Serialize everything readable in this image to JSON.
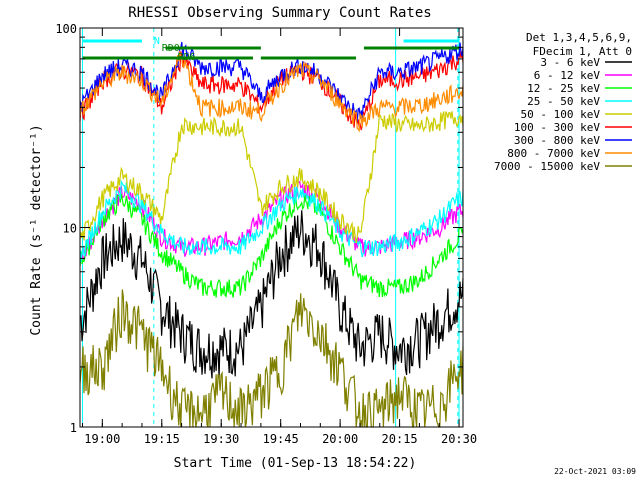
{
  "chart_data": {
    "type": "line",
    "title": "RHESSI Observing Summary Count Rates",
    "xlabel": "Start Time (01-Sep-13 18:54:22)",
    "ylabel": "Count Rate (s⁻¹ detector⁻¹)",
    "y_scale": "log",
    "ylim": [
      1,
      100
    ],
    "xlim": [
      "18:54:22",
      "20:31:00"
    ],
    "grid": false,
    "legend_placement": "right, outside plot",
    "x_ticks": [
      "19:00",
      "19:15",
      "19:30",
      "19:45",
      "20:00",
      "20:15",
      "20:30"
    ],
    "y_ticks": [
      "1",
      "10",
      "100"
    ],
    "legend_header": [
      "Det 1,3,4,5,6,9,",
      "FDecim 1, Att 0"
    ],
    "series": [
      {
        "name": "3 - 6 keV",
        "color": "#000000",
        "x": [
          "18:55",
          "19:00",
          "19:05",
          "19:10",
          "19:15",
          "19:20",
          "19:25",
          "19:30",
          "19:35",
          "19:40",
          "19:45",
          "19:50",
          "19:55",
          "20:00",
          "20:05",
          "20:10",
          "20:15",
          "20:20",
          "20:25",
          "20:30"
        ],
        "values": [
          3.5,
          7.0,
          9.0,
          7.0,
          4.0,
          3.0,
          2.5,
          2.5,
          2.5,
          4.0,
          7.5,
          10.0,
          8.0,
          4.0,
          2.5,
          3.0,
          2.5,
          2.8,
          3.5,
          4.5
        ]
      },
      {
        "name": "6 - 12 keV",
        "color": "#ff00ff",
        "x": [
          "18:55",
          "19:00",
          "19:05",
          "19:10",
          "19:15",
          "19:20",
          "19:25",
          "19:30",
          "19:35",
          "19:40",
          "19:45",
          "19:50",
          "19:55",
          "20:00",
          "20:05",
          "20:10",
          "20:15",
          "20:20",
          "20:25",
          "20:30"
        ],
        "values": [
          7.0,
          11.0,
          15.0,
          13.0,
          9.0,
          8.0,
          8.0,
          8.5,
          9.0,
          11.0,
          14.0,
          16.0,
          14.0,
          10.0,
          8.0,
          8.0,
          8.5,
          9.0,
          10.0,
          12.0
        ]
      },
      {
        "name": "12 - 25 keV",
        "color": "#00ff00",
        "x": [
          "18:55",
          "19:00",
          "19:05",
          "19:10",
          "19:15",
          "19:20",
          "19:25",
          "19:30",
          "19:35",
          "19:40",
          "19:45",
          "19:50",
          "19:55",
          "20:00",
          "20:05",
          "20:10",
          "20:15",
          "20:20",
          "20:25",
          "20:30"
        ],
        "values": [
          7.0,
          11.0,
          14.0,
          11.0,
          7.5,
          6.0,
          5.0,
          5.0,
          5.0,
          7.0,
          11.0,
          14.0,
          12.0,
          8.0,
          5.5,
          5.0,
          5.0,
          5.5,
          7.0,
          9.0
        ]
      },
      {
        "name": "25 - 50 keV",
        "color": "#00ffff",
        "x": [
          "18:55",
          "19:00",
          "19:05",
          "19:10",
          "19:15",
          "19:20",
          "19:25",
          "19:30",
          "19:35",
          "19:40",
          "19:45",
          "19:50",
          "19:55",
          "20:00",
          "20:05",
          "20:10",
          "20:15",
          "20:20",
          "20:25",
          "20:30"
        ],
        "values": [
          7.5,
          12.0,
          16.0,
          13.0,
          9.5,
          8.0,
          8.0,
          8.0,
          8.0,
          10.0,
          13.0,
          15.5,
          13.0,
          9.5,
          8.0,
          8.0,
          8.5,
          9.5,
          11.0,
          14.0
        ]
      },
      {
        "name": "50 - 100 keV",
        "color": "#cccc00",
        "x": [
          "18:55",
          "19:00",
          "19:05",
          "19:10",
          "19:15",
          "19:20",
          "19:25",
          "19:30",
          "19:35",
          "19:40",
          "19:45",
          "19:50",
          "19:55",
          "20:00",
          "20:05",
          "20:10",
          "20:15",
          "20:20",
          "20:25",
          "20:30"
        ],
        "values": [
          9.0,
          14.0,
          18.0,
          15.0,
          11.0,
          33.0,
          32.0,
          32.0,
          32.0,
          12.5,
          16.0,
          18.0,
          15.0,
          11.0,
          9.0,
          35.0,
          33.0,
          32.0,
          34.0,
          36.0
        ]
      },
      {
        "name": "100 - 300 keV",
        "color": "#ff0000",
        "x": [
          "18:55",
          "19:00",
          "19:05",
          "19:10",
          "19:15",
          "19:20",
          "19:25",
          "19:30",
          "19:35",
          "19:40",
          "19:45",
          "19:50",
          "19:55",
          "20:00",
          "20:05",
          "20:10",
          "20:15",
          "20:20",
          "20:25",
          "20:30"
        ],
        "values": [
          38.0,
          55.0,
          62.0,
          58.0,
          40.0,
          72.0,
          52.0,
          52.0,
          52.0,
          40.0,
          55.0,
          62.0,
          55.0,
          42.0,
          32.0,
          55.0,
          55.0,
          57.0,
          62.0,
          70.0
        ]
      },
      {
        "name": "300 - 800 keV",
        "color": "#0000ff",
        "x": [
          "18:55",
          "19:00",
          "19:05",
          "19:10",
          "19:15",
          "19:20",
          "19:25",
          "19:30",
          "19:35",
          "19:40",
          "19:45",
          "19:50",
          "19:55",
          "20:00",
          "20:05",
          "20:10",
          "20:15",
          "20:20",
          "20:25",
          "20:30"
        ],
        "values": [
          42.0,
          58.0,
          65.0,
          60.0,
          45.0,
          80.0,
          64.0,
          64.0,
          64.0,
          45.0,
          58.0,
          66.0,
          58.0,
          45.0,
          36.0,
          60.0,
          60.0,
          64.0,
          70.0,
          78.0
        ]
      },
      {
        "name": "800 - 7000 keV",
        "color": "#ff8c00",
        "x": [
          "18:55",
          "19:00",
          "19:05",
          "19:10",
          "19:15",
          "19:20",
          "19:25",
          "19:30",
          "19:35",
          "19:40",
          "19:45",
          "19:50",
          "19:55",
          "20:00",
          "20:05",
          "20:10",
          "20:15",
          "20:20",
          "20:25",
          "20:30"
        ],
        "values": [
          40.0,
          53.0,
          60.0,
          55.0,
          42.0,
          75.0,
          40.0,
          40.0,
          40.0,
          38.0,
          52.0,
          62.0,
          55.0,
          42.0,
          34.0,
          40.0,
          40.0,
          41.0,
          44.0,
          48.0
        ]
      },
      {
        "name": "7000 - 15000 keV",
        "color": "#808000",
        "x": [
          "18:55",
          "19:00",
          "19:05",
          "19:10",
          "19:15",
          "19:20",
          "19:25",
          "19:30",
          "19:35",
          "19:40",
          "19:45",
          "19:50",
          "19:55",
          "20:00",
          "20:05",
          "20:10",
          "20:15",
          "20:20",
          "20:25",
          "20:30"
        ],
        "values": [
          2.0,
          2.0,
          4.0,
          3.0,
          2.0,
          1.2,
          1.2,
          1.5,
          1.2,
          1.5,
          2.0,
          4.0,
          3.0,
          2.0,
          1.2,
          1.2,
          1.5,
          1.2,
          1.3,
          2.0
        ]
      }
    ],
    "annotations": [
      "N",
      "RD0",
      "RD6"
    ],
    "footer_date": "22-Oct-2021 03:09"
  }
}
